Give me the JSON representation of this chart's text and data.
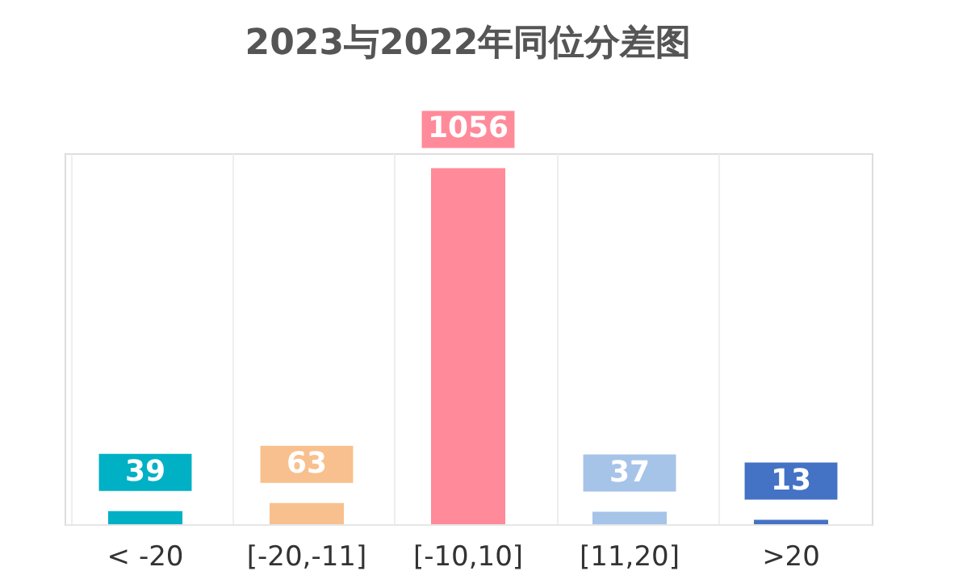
{
  "chart_data": {
    "type": "bar",
    "title": "2023与2022年同位分差图",
    "categories": [
      "< -20",
      "[-20,-11]",
      "[-10,10]",
      "[11,20]",
      ">20"
    ],
    "values": [
      39,
      63,
      1056,
      37,
      13
    ],
    "colors": [
      "#00b0c4",
      "#f8c08e",
      "#ff8a99",
      "#a6c3e8",
      "#4472c4"
    ],
    "data_labels": true,
    "grid": "x"
  }
}
